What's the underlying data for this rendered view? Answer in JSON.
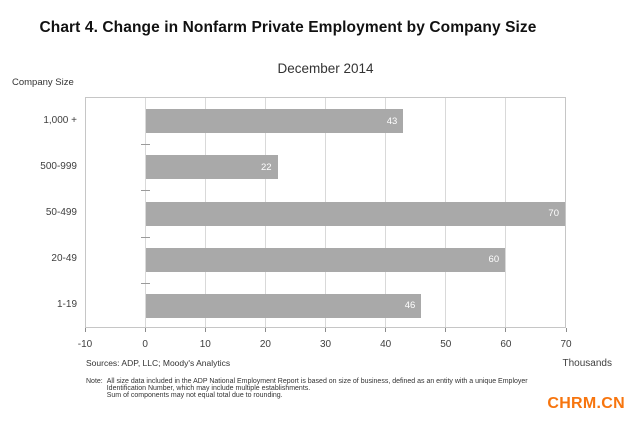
{
  "chart_data": {
    "type": "bar",
    "orientation": "horizontal",
    "title": "Chart 4. Change in Nonfarm Private Employment by Company Size",
    "subtitle": "December 2014",
    "categories": [
      "1,000 +",
      "500-999",
      "50-499",
      "20-49",
      "1-19"
    ],
    "values": [
      43,
      22,
      70,
      60,
      46
    ],
    "data_labels": [
      "43",
      "22",
      "70",
      "60",
      "46"
    ],
    "xlabel": "Thousands",
    "ylabel": "Company Size",
    "xlim": [
      -10,
      70
    ],
    "xticks": [
      -10,
      0,
      10,
      20,
      30,
      40,
      50,
      60,
      70
    ],
    "grid": true,
    "legend": "none",
    "bar_color": "#a9a9a9",
    "data_label_color": "#ffffff",
    "gridline_color": "#d9d9d9"
  },
  "sources": "Sources: ADP, LLC; Moody's Analytics",
  "note": {
    "label": "Note:",
    "lines": [
      "All size data included in the ADP National Employment Report is based on size of business, defined as an entity with a unique Employer",
      "Identification Number, which may include multiple establishments.",
      "Sum of components may not equal total due to rounding."
    ]
  },
  "watermark": {
    "text": "CHRM.CN",
    "color": "#f7750e"
  }
}
